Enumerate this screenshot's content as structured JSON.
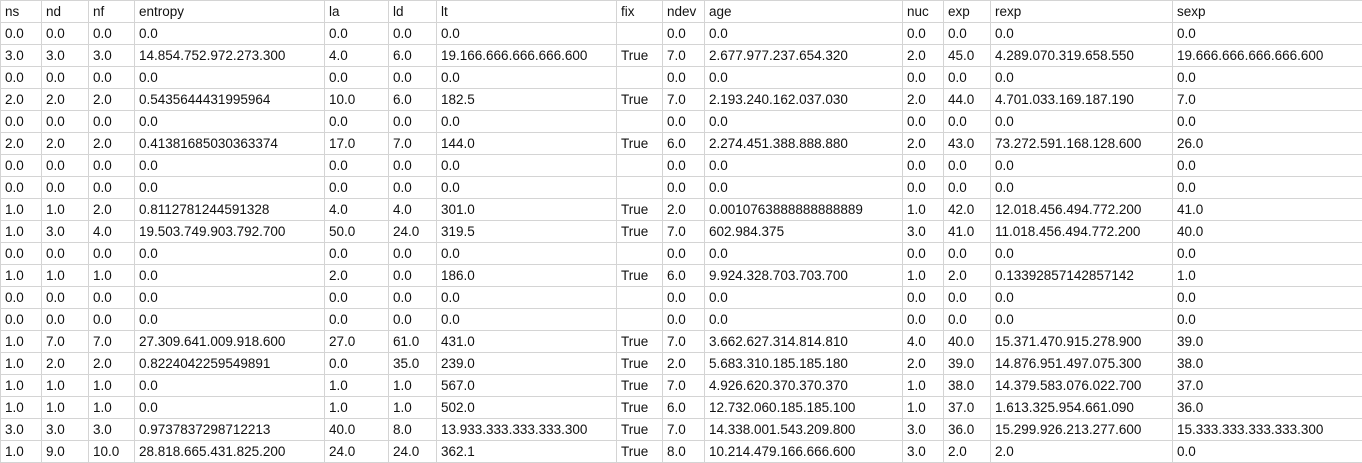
{
  "sheet": {
    "headers": [
      "ns",
      "nd",
      "nf",
      "entropy",
      "la",
      "ld",
      "lt",
      "fix",
      "ndev",
      "age",
      "nuc",
      "exp",
      "rexp",
      "sexp"
    ],
    "rows": [
      [
        "0.0",
        "0.0",
        "0.0",
        "0.0",
        "0.0",
        "0.0",
        "0.0",
        "",
        "0.0",
        "0.0",
        "0.0",
        "0.0",
        "0.0",
        "0.0"
      ],
      [
        "3.0",
        "3.0",
        "3.0",
        "14.854.752.972.273.300",
        "4.0",
        "6.0",
        "19.166.666.666.666.600",
        "True",
        "7.0",
        "2.677.977.237.654.320",
        "2.0",
        "45.0",
        "4.289.070.319.658.550",
        "19.666.666.666.666.600"
      ],
      [
        "0.0",
        "0.0",
        "0.0",
        "0.0",
        "0.0",
        "0.0",
        "0.0",
        "",
        "0.0",
        "0.0",
        "0.0",
        "0.0",
        "0.0",
        "0.0"
      ],
      [
        "2.0",
        "2.0",
        "2.0",
        "0.5435644431995964",
        "10.0",
        "6.0",
        "182.5",
        "True",
        "7.0",
        "2.193.240.162.037.030",
        "2.0",
        "44.0",
        "4.701.033.169.187.190",
        "7.0"
      ],
      [
        "0.0",
        "0.0",
        "0.0",
        "0.0",
        "0.0",
        "0.0",
        "0.0",
        "",
        "0.0",
        "0.0",
        "0.0",
        "0.0",
        "0.0",
        "0.0"
      ],
      [
        "2.0",
        "2.0",
        "2.0",
        "0.41381685030363374",
        "17.0",
        "7.0",
        "144.0",
        "True",
        "6.0",
        "2.274.451.388.888.880",
        "2.0",
        "43.0",
        "73.272.591.168.128.600",
        "26.0"
      ],
      [
        "0.0",
        "0.0",
        "0.0",
        "0.0",
        "0.0",
        "0.0",
        "0.0",
        "",
        "0.0",
        "0.0",
        "0.0",
        "0.0",
        "0.0",
        "0.0"
      ],
      [
        "0.0",
        "0.0",
        "0.0",
        "0.0",
        "0.0",
        "0.0",
        "0.0",
        "",
        "0.0",
        "0.0",
        "0.0",
        "0.0",
        "0.0",
        "0.0"
      ],
      [
        "1.0",
        "1.0",
        "2.0",
        "0.8112781244591328",
        "4.0",
        "4.0",
        "301.0",
        "True",
        "2.0",
        "0.0010763888888888889",
        "1.0",
        "42.0",
        "12.018.456.494.772.200",
        "41.0"
      ],
      [
        "1.0",
        "3.0",
        "4.0",
        "19.503.749.903.792.700",
        "50.0",
        "24.0",
        "319.5",
        "True",
        "7.0",
        "602.984.375",
        "3.0",
        "41.0",
        "11.018.456.494.772.200",
        "40.0"
      ],
      [
        "0.0",
        "0.0",
        "0.0",
        "0.0",
        "0.0",
        "0.0",
        "0.0",
        "",
        "0.0",
        "0.0",
        "0.0",
        "0.0",
        "0.0",
        "0.0"
      ],
      [
        "1.0",
        "1.0",
        "1.0",
        "0.0",
        "2.0",
        "0.0",
        "186.0",
        "True",
        "6.0",
        "9.924.328.703.703.700",
        "1.0",
        "2.0",
        "0.13392857142857142",
        "1.0"
      ],
      [
        "0.0",
        "0.0",
        "0.0",
        "0.0",
        "0.0",
        "0.0",
        "0.0",
        "",
        "0.0",
        "0.0",
        "0.0",
        "0.0",
        "0.0",
        "0.0"
      ],
      [
        "0.0",
        "0.0",
        "0.0",
        "0.0",
        "0.0",
        "0.0",
        "0.0",
        "",
        "0.0",
        "0.0",
        "0.0",
        "0.0",
        "0.0",
        "0.0"
      ],
      [
        "1.0",
        "7.0",
        "7.0",
        "27.309.641.009.918.600",
        "27.0",
        "61.0",
        "431.0",
        "True",
        "7.0",
        "3.662.627.314.814.810",
        "4.0",
        "40.0",
        "15.371.470.915.278.900",
        "39.0"
      ],
      [
        "1.0",
        "2.0",
        "2.0",
        "0.8224042259549891",
        "0.0",
        "35.0",
        "239.0",
        "True",
        "2.0",
        "5.683.310.185.185.180",
        "2.0",
        "39.0",
        "14.876.951.497.075.300",
        "38.0"
      ],
      [
        "1.0",
        "1.0",
        "1.0",
        "0.0",
        "1.0",
        "1.0",
        "567.0",
        "True",
        "7.0",
        "4.926.620.370.370.370",
        "1.0",
        "38.0",
        "14.379.583.076.022.700",
        "37.0"
      ],
      [
        "1.0",
        "1.0",
        "1.0",
        "0.0",
        "1.0",
        "1.0",
        "502.0",
        "True",
        "6.0",
        "12.732.060.185.185.100",
        "1.0",
        "37.0",
        "1.613.325.954.661.090",
        "36.0"
      ],
      [
        "3.0",
        "3.0",
        "3.0",
        "0.9737837298712213",
        "40.0",
        "8.0",
        "13.933.333.333.333.300",
        "True",
        "7.0",
        "14.338.001.543.209.800",
        "3.0",
        "36.0",
        "15.299.926.213.277.600",
        "15.333.333.333.333.300"
      ],
      [
        "1.0",
        "9.0",
        "10.0",
        "28.818.665.431.825.200",
        "24.0",
        "24.0",
        "362.1",
        "True",
        "8.0",
        "10.214.479.166.666.600",
        "3.0",
        "2.0",
        "2.0",
        "0.0"
      ]
    ]
  }
}
